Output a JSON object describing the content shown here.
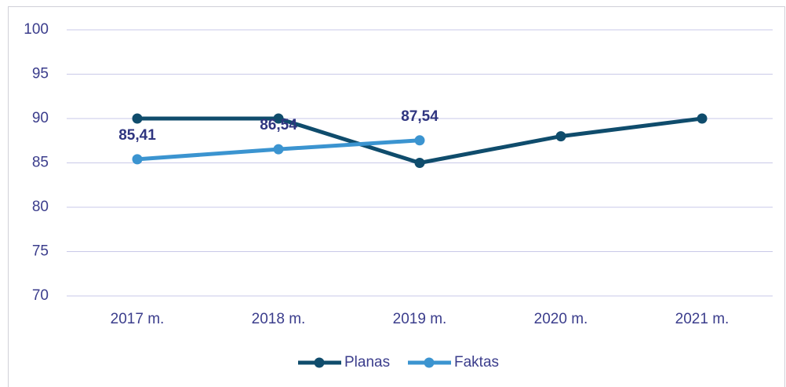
{
  "chart_data": {
    "type": "line",
    "categories": [
      "2017 m.",
      "2018 m.",
      "2019 m.",
      "2020 m.",
      "2021 m."
    ],
    "series": [
      {
        "name": "Planas",
        "color": "#0f4c6c",
        "values": [
          90,
          90,
          85,
          88,
          90
        ]
      },
      {
        "name": "Faktas",
        "color": "#3b94d0",
        "values": [
          85.41,
          86.54,
          87.54,
          null,
          null
        ],
        "value_labels": [
          "85,41",
          "86,54",
          "87,54",
          null,
          null
        ]
      }
    ],
    "ylim": [
      70,
      100
    ],
    "yticks": [
      70,
      75,
      80,
      85,
      90,
      95,
      100
    ],
    "grid": true,
    "legend": "bottom"
  }
}
